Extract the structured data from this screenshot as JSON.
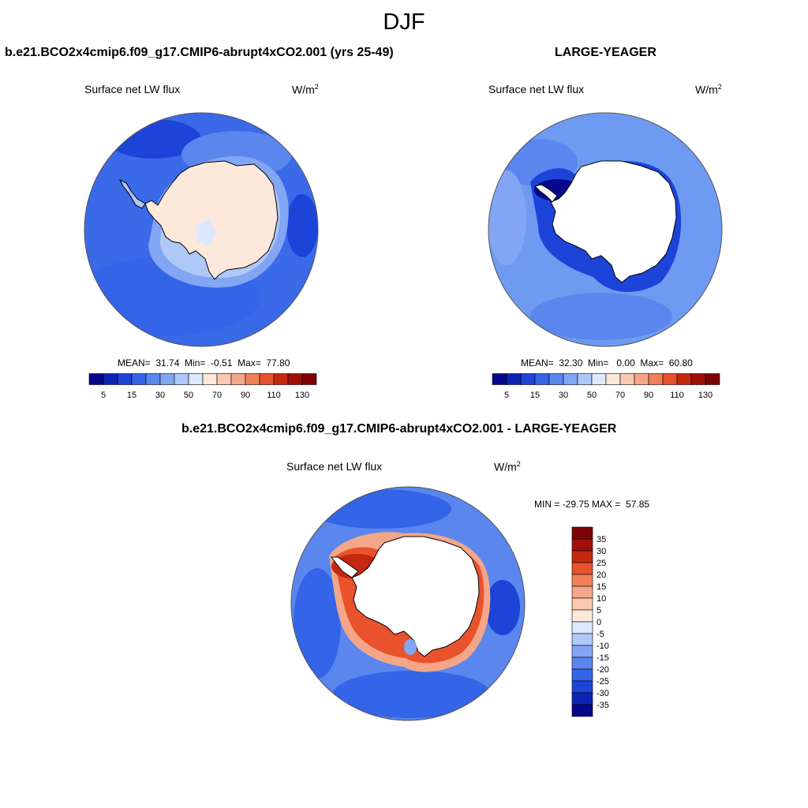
{
  "figure": {
    "title": "DJF"
  },
  "panels": [
    {
      "id": "case",
      "title": "b.e21.BCO2x4cmip6.f09_g17.CMIP6-abrupt4xCO2.001 (yrs 25-49)",
      "variable": "Surface net LW flux",
      "units_base": "W/m",
      "units_exp": "2",
      "stats_text": "MEAN=  31.74  Min=  -0.51  Max=  77.80",
      "mean": 31.74,
      "min": -0.51,
      "max": 77.8,
      "colorbar_labels": [
        "5",
        "15",
        "30",
        "50",
        "70",
        "90",
        "110",
        "130"
      ]
    },
    {
      "id": "control",
      "title": "LARGE-YEAGER",
      "variable": "Surface net LW flux",
      "units_base": "W/m",
      "units_exp": "2",
      "stats_text": "MEAN=  32.30  Min=   0.00  Max=  60.80",
      "mean": 32.3,
      "min": 0.0,
      "max": 60.8,
      "colorbar_labels": [
        "5",
        "15",
        "30",
        "50",
        "70",
        "90",
        "110",
        "130"
      ]
    },
    {
      "id": "diff",
      "title": "b.e21.BCO2x4cmip6.f09_g17.CMIP6-abrupt4xCO2.001 - LARGE-YEAGER",
      "variable": "Surface net LW flux",
      "units_base": "W/m",
      "units_exp": "2",
      "stats_text": "MIN = -29.75 MAX =  57.85",
      "min": -29.75,
      "max": 57.85,
      "colorbar_labels": [
        "35",
        "30",
        "25",
        "20",
        "15",
        "10",
        "5",
        "0",
        "-5",
        "-10",
        "-15",
        "-20",
        "-25",
        "-30",
        "-35"
      ]
    }
  ],
  "colors": {
    "abs_scale": [
      "#08088c",
      "#0c24b4",
      "#1c44d8",
      "#3464e8",
      "#5a86ee",
      "#82a6f4",
      "#b0c8f8",
      "#dce8fc",
      "#fde8dc",
      "#f8c8b0",
      "#f4a688",
      "#f08058",
      "#e8522c",
      "#c42810",
      "#a01008",
      "#7c0404"
    ],
    "diff_scale": [
      "#7c0404",
      "#a01008",
      "#c42810",
      "#e8522c",
      "#f08058",
      "#f4a688",
      "#f8c8b0",
      "#fde8dc",
      "#dce8fc",
      "#b0c8f8",
      "#82a6f4",
      "#5a86ee",
      "#3464e8",
      "#1c44d8",
      "#0c24b4",
      "#08088c"
    ],
    "ocean_case": "#3a6ae8",
    "ocean_control": "#6e9af2",
    "ocean_diff": "#5a86ee",
    "antarctica_case": "#fde8dc",
    "land_mask": "#ffffff",
    "coast": "#000000"
  }
}
